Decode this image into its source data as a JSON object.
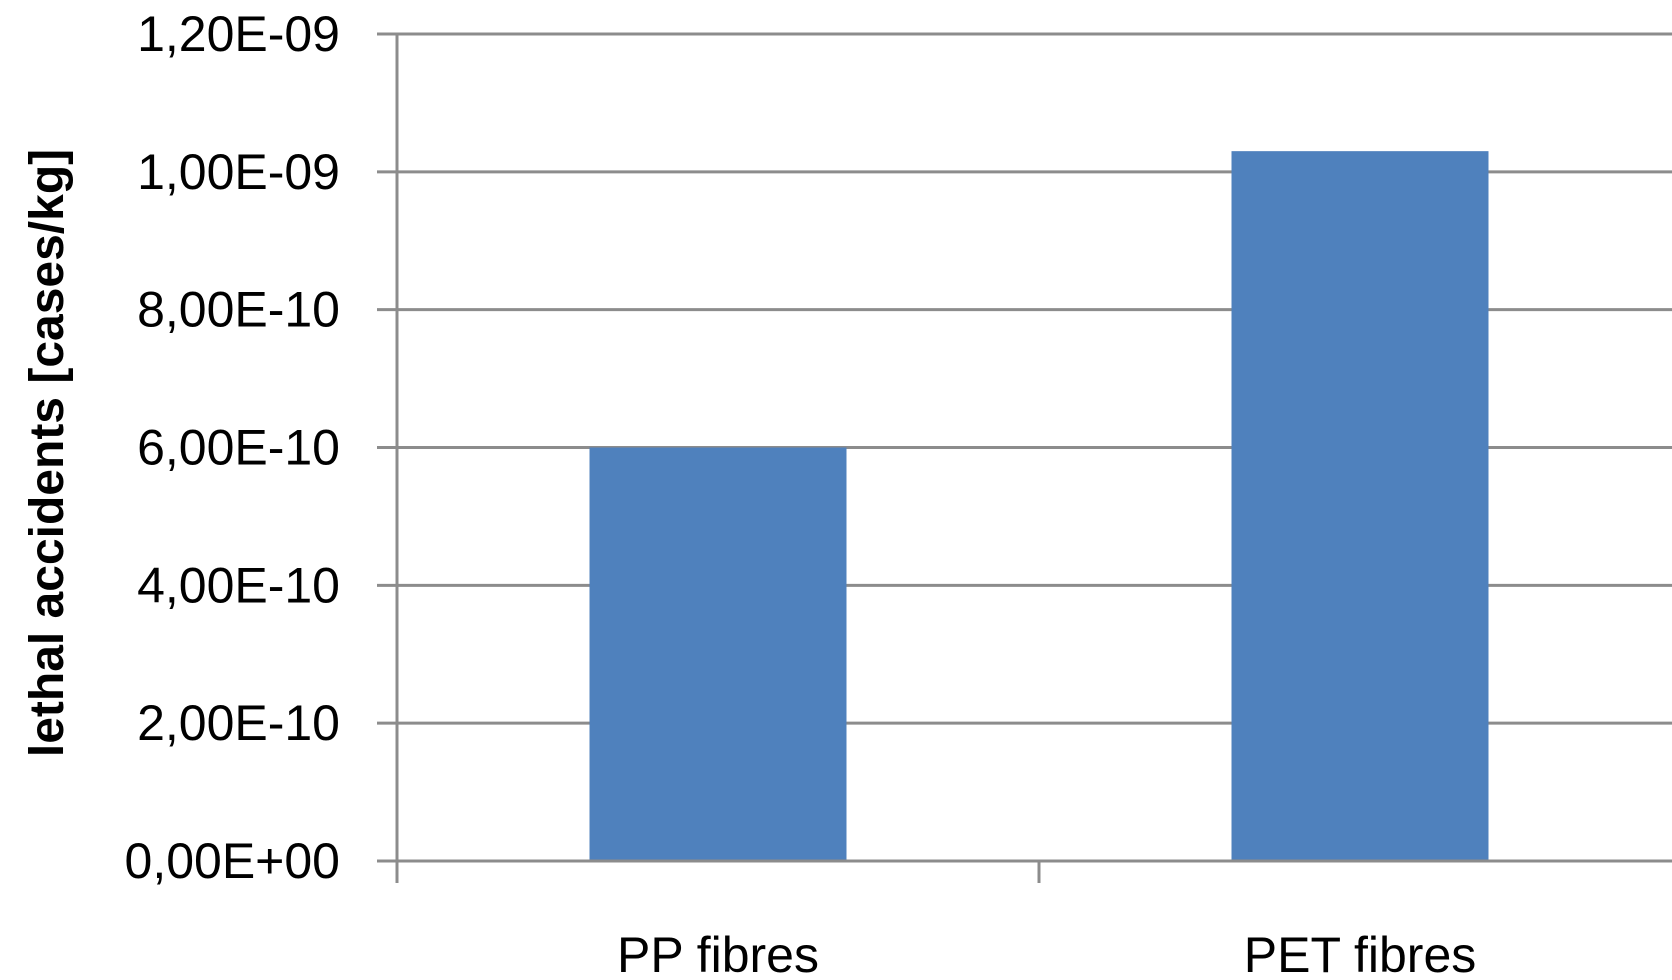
{
  "chart_data": {
    "type": "bar",
    "categories": [
      "PP fibres",
      "PET fibres"
    ],
    "values": [
      6e-10,
      1.03e-09
    ],
    "ylabel": "lethal accidents [cases/kg]",
    "ylim": [
      0,
      1.2e-09
    ],
    "yticks": [
      0,
      2e-10,
      4e-10,
      6e-10,
      8e-10,
      1e-09,
      1.2e-09
    ],
    "ytick_labels": [
      "0,00E+00",
      "2,00E-10",
      "4,00E-10",
      "6,00E-10",
      "8,00E-10",
      "1,00E-09",
      "1,20E-09"
    ],
    "grid": true,
    "legend": "none",
    "bar_color": "#4f81bd",
    "grid_color": "#8c8c8c"
  }
}
